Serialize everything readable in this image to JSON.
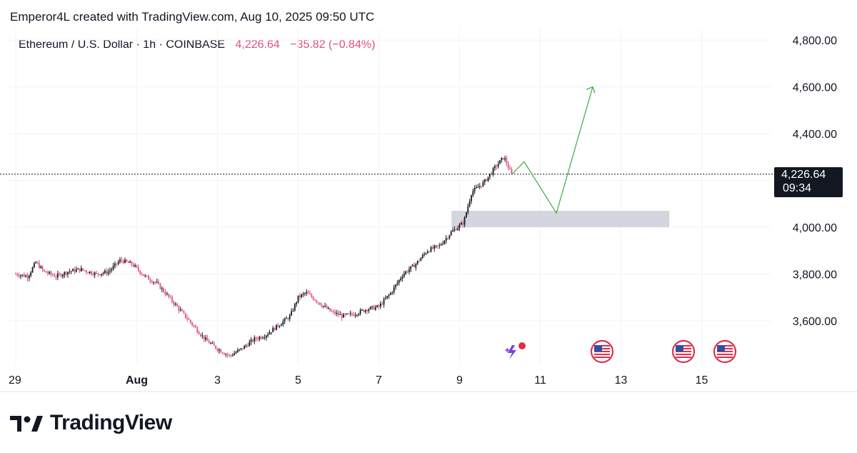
{
  "header": {
    "attribution": "Emperor4L created with TradingView.com, Aug 10, 2025 09:50 UTC"
  },
  "symbol": {
    "name": "Ethereum / U.S. Dollar",
    "interval": "1h",
    "exchange": "COINBASE",
    "last_price": "4,226.64",
    "change": "−35.82 (−0.84%)"
  },
  "price_tag": {
    "value": "4,226.64",
    "countdown": "09:34"
  },
  "brand": {
    "name": "TradingView"
  },
  "colors": {
    "up": "#131722",
    "down": "#e0507a",
    "projection": "#4caf50",
    "zone": "#d1d4dc"
  },
  "chart_data": {
    "type": "candlestick",
    "y_ticks": [
      "4,800.00",
      "4,600.00",
      "4,400.00",
      "4,000.00",
      "3,800.00",
      "3,600.00"
    ],
    "y_tick_values": [
      4800,
      4600,
      4400,
      4000,
      3800,
      3600
    ],
    "x_ticks": [
      {
        "label": "29",
        "day": 29,
        "bold": false
      },
      {
        "label": "Aug",
        "day": 32,
        "bold": true
      },
      {
        "label": "3",
        "day": 34,
        "bold": false
      },
      {
        "label": "5",
        "day": 36,
        "bold": false
      },
      {
        "label": "7",
        "day": 38,
        "bold": false
      },
      {
        "label": "9",
        "day": 40,
        "bold": false
      },
      {
        "label": "11",
        "day": 42,
        "bold": false
      },
      {
        "label": "13",
        "day": 44,
        "bold": false
      },
      {
        "label": "15",
        "day": 46,
        "bold": false
      }
    ],
    "last_price": 4226.64,
    "close_path": [
      [
        29.0,
        3800
      ],
      [
        29.3,
        3790
      ],
      [
        29.5,
        3850
      ],
      [
        29.7,
        3810
      ],
      [
        30.0,
        3790
      ],
      [
        30.3,
        3810
      ],
      [
        30.6,
        3820
      ],
      [
        31.0,
        3800
      ],
      [
        31.3,
        3810
      ],
      [
        31.6,
        3860
      ],
      [
        31.9,
        3840
      ],
      [
        32.2,
        3790
      ],
      [
        32.5,
        3760
      ],
      [
        32.8,
        3700
      ],
      [
        33.1,
        3640
      ],
      [
        33.4,
        3580
      ],
      [
        33.7,
        3520
      ],
      [
        34.0,
        3480
      ],
      [
        34.3,
        3450
      ],
      [
        34.6,
        3480
      ],
      [
        34.9,
        3520
      ],
      [
        35.2,
        3540
      ],
      [
        35.5,
        3580
      ],
      [
        35.8,
        3620
      ],
      [
        36.0,
        3700
      ],
      [
        36.2,
        3720
      ],
      [
        36.5,
        3680
      ],
      [
        36.8,
        3640
      ],
      [
        37.1,
        3620
      ],
      [
        37.4,
        3630
      ],
      [
        37.7,
        3650
      ],
      [
        38.0,
        3660
      ],
      [
        38.3,
        3720
      ],
      [
        38.6,
        3800
      ],
      [
        38.9,
        3840
      ],
      [
        39.2,
        3900
      ],
      [
        39.5,
        3920
      ],
      [
        39.8,
        3980
      ],
      [
        40.1,
        4020
      ],
      [
        40.3,
        4150
      ],
      [
        40.6,
        4190
      ],
      [
        40.9,
        4260
      ],
      [
        41.1,
        4300
      ],
      [
        41.3,
        4220
      ]
    ],
    "support_zone": {
      "x0": 39.8,
      "x1": 45.2,
      "y0": 4000,
      "y1": 4070
    },
    "projection": [
      [
        41.3,
        4226
      ],
      [
        41.6,
        4280
      ],
      [
        42.4,
        4060
      ],
      [
        43.3,
        4600
      ]
    ],
    "event_markers": [
      {
        "type": "news-flash",
        "day": 41.3
      },
      {
        "type": "us-flag",
        "day": 44.2
      },
      {
        "type": "us-flag",
        "day": 46.2
      },
      {
        "type": "us-flag",
        "day": 47.2
      }
    ],
    "grid": true,
    "legend": "none"
  }
}
